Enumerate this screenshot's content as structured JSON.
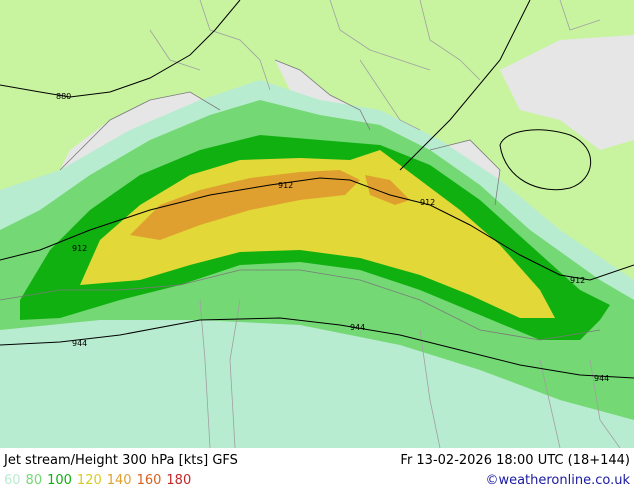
{
  "title": "Jet stream/Height 300 hPa [kts] GFS",
  "datetime": "Fr 13-02-2026 18:00 UTC (18+144)",
  "credit": "©weatheronline.co.uk",
  "legend": [
    {
      "label": "60",
      "color": "#b8ecd0"
    },
    {
      "label": "80",
      "color": "#74d874"
    },
    {
      "label": "100",
      "color": "#10b010"
    },
    {
      "label": "120",
      "color": "#d8cc20"
    },
    {
      "label": "140",
      "color": "#e0a030"
    },
    {
      "label": "160",
      "color": "#d86020"
    },
    {
      "label": "180",
      "color": "#c02828"
    }
  ],
  "contour_labels": [
    "880",
    "912",
    "912",
    "912",
    "912",
    "944",
    "944",
    "944"
  ],
  "colors": {
    "land": "#c8f4a0",
    "sea": "#e6e6e6",
    "border": "#a0a0a0"
  }
}
